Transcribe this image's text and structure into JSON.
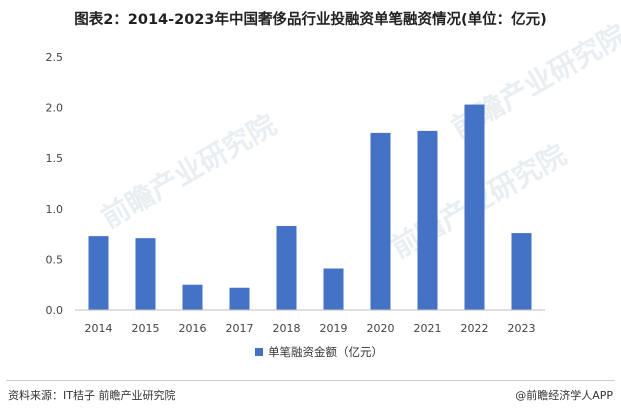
{
  "title": "图表2：2014-2023年中国奢侈品行业投融资单笔融资情况(单位：亿元)",
  "watermark": "前瞻产业研究院",
  "chart_data": {
    "type": "bar",
    "categories": [
      "2014",
      "2015",
      "2016",
      "2017",
      "2018",
      "2019",
      "2020",
      "2021",
      "2022",
      "2023"
    ],
    "series": [
      {
        "name": "单笔融资金额（亿元）",
        "values": [
          0.73,
          0.71,
          0.25,
          0.22,
          0.83,
          0.41,
          1.75,
          1.77,
          2.03,
          0.76
        ]
      }
    ],
    "yticks": [
      "0.0",
      "0.5",
      "1.0",
      "1.5",
      "2.0",
      "2.5"
    ],
    "ylim": [
      0,
      2.5
    ],
    "grid": false,
    "legend_position": "bottom",
    "bar_color": "#4472c4"
  },
  "footer": {
    "source": "资料来源：IT桔子 前瞻产业研究院",
    "brand": "@前瞻经济学人APP"
  }
}
